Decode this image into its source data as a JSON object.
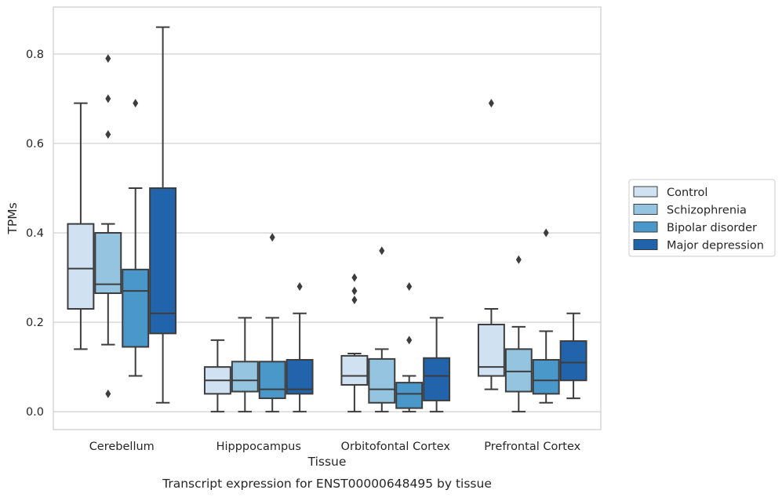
{
  "chart_data": {
    "type": "boxplot",
    "caption": "Transcript expression for ENST00000648495 by tissue",
    "xlabel": "Tissue",
    "ylabel": "TPMs",
    "ylim": [
      -0.04,
      0.905
    ],
    "yticks": [
      0.0,
      0.2,
      0.4,
      0.6,
      0.8
    ],
    "ytick_labels": [
      "0.0",
      "0.2",
      "0.4",
      "0.6",
      "0.8"
    ],
    "grid": "horizontal",
    "legend_position": "right",
    "categories": [
      "Cerebellum",
      "Hipppocampus",
      "Orbitofontal Cortex",
      "Prefrontal Cortex"
    ],
    "series": [
      {
        "name": "Control",
        "color": "#d0e1f2",
        "boxes": [
          {
            "whislo": 0.14,
            "q1": 0.23,
            "med": 0.32,
            "q3": 0.42,
            "whishi": 0.69,
            "fliers": []
          },
          {
            "whislo": 0.0,
            "q1": 0.04,
            "med": 0.07,
            "q3": 0.1,
            "whishi": 0.16,
            "fliers": []
          },
          {
            "whislo": 0.0,
            "q1": 0.06,
            "med": 0.08,
            "q3": 0.125,
            "whishi": 0.13,
            "fliers": [
              0.25,
              0.27,
              0.3
            ]
          },
          {
            "whislo": 0.05,
            "q1": 0.08,
            "med": 0.1,
            "q3": 0.195,
            "whishi": 0.23,
            "fliers": [
              0.69
            ]
          }
        ]
      },
      {
        "name": "Schizophrenia",
        "color": "#94c4df",
        "boxes": [
          {
            "whislo": 0.15,
            "q1": 0.265,
            "med": 0.285,
            "q3": 0.4,
            "whishi": 0.42,
            "fliers": [
              0.04,
              0.62,
              0.7,
              0.79
            ]
          },
          {
            "whislo": 0.0,
            "q1": 0.045,
            "med": 0.07,
            "q3": 0.112,
            "whishi": 0.21,
            "fliers": []
          },
          {
            "whislo": 0.0,
            "q1": 0.02,
            "med": 0.05,
            "q3": 0.118,
            "whishi": 0.14,
            "fliers": [
              0.36
            ]
          },
          {
            "whislo": 0.0,
            "q1": 0.045,
            "med": 0.09,
            "q3": 0.14,
            "whishi": 0.19,
            "fliers": [
              0.34
            ]
          }
        ]
      },
      {
        "name": "Bipolar disorder",
        "color": "#4a98c9",
        "boxes": [
          {
            "whislo": 0.08,
            "q1": 0.145,
            "med": 0.27,
            "q3": 0.318,
            "whishi": 0.5,
            "fliers": [
              0.69
            ]
          },
          {
            "whislo": 0.0,
            "q1": 0.03,
            "med": 0.05,
            "q3": 0.112,
            "whishi": 0.21,
            "fliers": [
              0.39
            ]
          },
          {
            "whislo": 0.0,
            "q1": 0.008,
            "med": 0.04,
            "q3": 0.065,
            "whishi": 0.08,
            "fliers": [
              0.16,
              0.28
            ]
          },
          {
            "whislo": 0.02,
            "q1": 0.04,
            "med": 0.07,
            "q3": 0.116,
            "whishi": 0.18,
            "fliers": [
              0.4
            ]
          }
        ]
      },
      {
        "name": "Major depression",
        "color": "#2164ab",
        "boxes": [
          {
            "whislo": 0.02,
            "q1": 0.175,
            "med": 0.22,
            "q3": 0.5,
            "whishi": 0.86,
            "fliers": []
          },
          {
            "whislo": 0.0,
            "q1": 0.04,
            "med": 0.05,
            "q3": 0.116,
            "whishi": 0.22,
            "fliers": [
              0.28
            ]
          },
          {
            "whislo": 0.0,
            "q1": 0.025,
            "med": 0.08,
            "q3": 0.12,
            "whishi": 0.21,
            "fliers": []
          },
          {
            "whislo": 0.03,
            "q1": 0.07,
            "med": 0.11,
            "q3": 0.158,
            "whishi": 0.22,
            "fliers": []
          }
        ]
      }
    ]
  }
}
